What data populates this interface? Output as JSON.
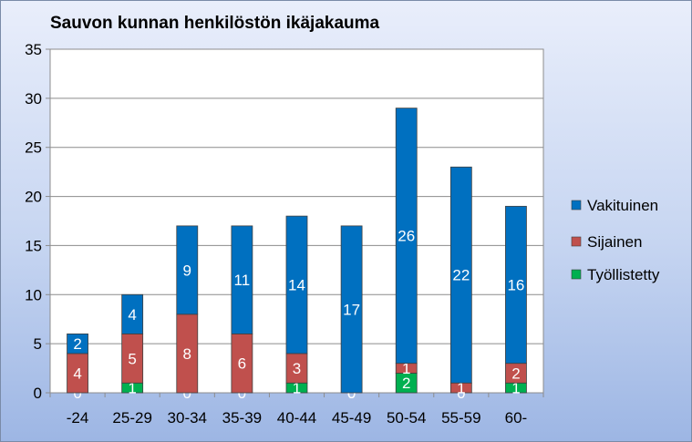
{
  "chart_data": {
    "type": "bar",
    "stacked": true,
    "title": "Sauvon kunnan henkilöstön ikäjakauma",
    "categories": [
      "-24",
      "25-29",
      "30-34",
      "35-39",
      "40-44",
      "45-49",
      "50-54",
      "55-59",
      "60-"
    ],
    "series": [
      {
        "name": "Työllistetty",
        "color": "#00b050",
        "values": [
          0,
          1,
          0,
          0,
          1,
          0,
          2,
          0,
          1
        ]
      },
      {
        "name": "Sijainen",
        "color": "#c0504d",
        "values": [
          4,
          5,
          8,
          6,
          3,
          0,
          1,
          1,
          2
        ]
      },
      {
        "name": "Vakituinen",
        "color": "#0070c0",
        "values": [
          2,
          4,
          9,
          11,
          14,
          17,
          26,
          22,
          16
        ]
      }
    ],
    "legend_order": [
      "Vakituinen",
      "Sijainen",
      "Työllistetty"
    ],
    "legend_position": "right",
    "ylim": [
      0,
      35
    ],
    "yticks": [
      0,
      5,
      10,
      15,
      20,
      25,
      30,
      35
    ],
    "grid": true,
    "xlabel": "",
    "ylabel": ""
  }
}
